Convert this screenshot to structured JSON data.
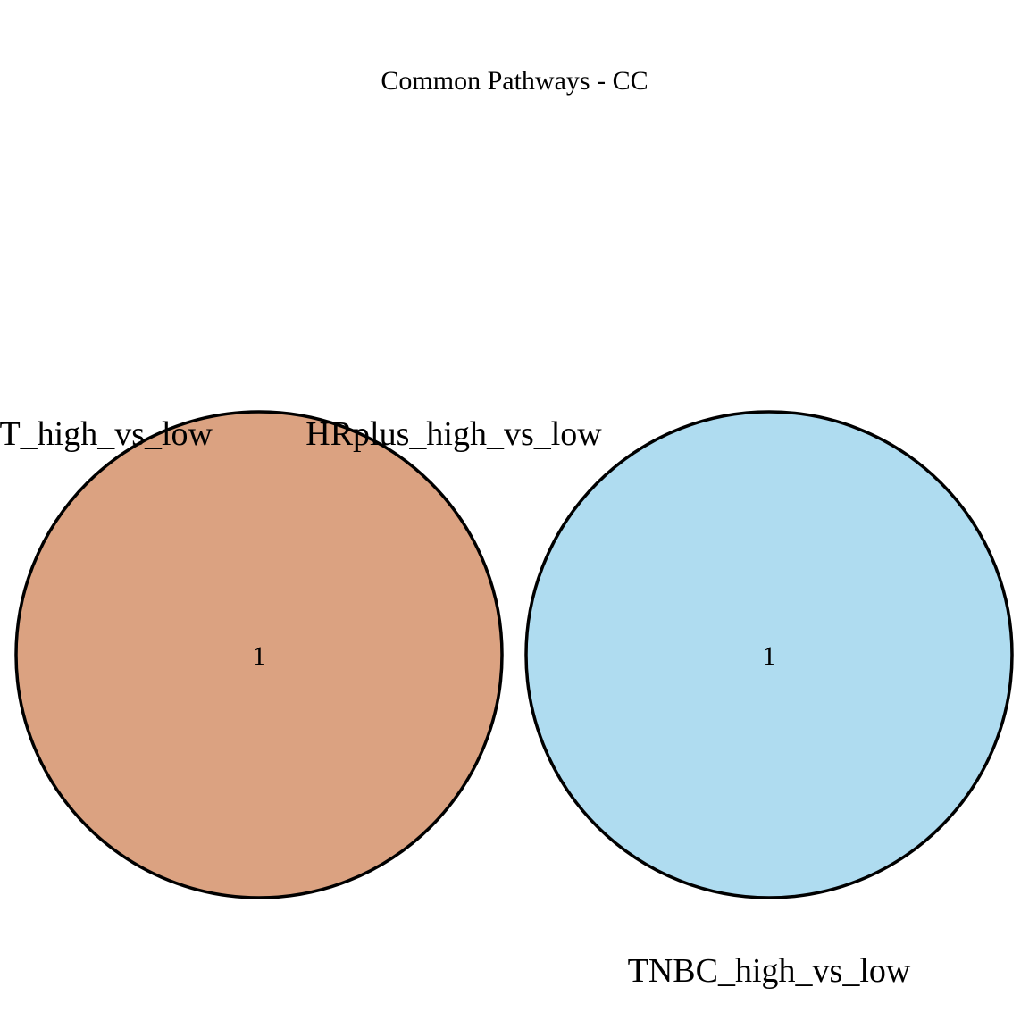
{
  "title": "Common Pathways - CC",
  "colors": {
    "set_left": "#dba281",
    "set_right": "#afdcf0",
    "outline": "#000000",
    "background": "#ffffff"
  },
  "sets": [
    {
      "label": "T_high_vs_low",
      "label_note": "left set label clipped at page edge",
      "count": "1"
    },
    {
      "label": "HRplus_high_vs_low",
      "count": ""
    },
    {
      "label": "TNBC_high_vs_low",
      "count": "1"
    }
  ]
}
